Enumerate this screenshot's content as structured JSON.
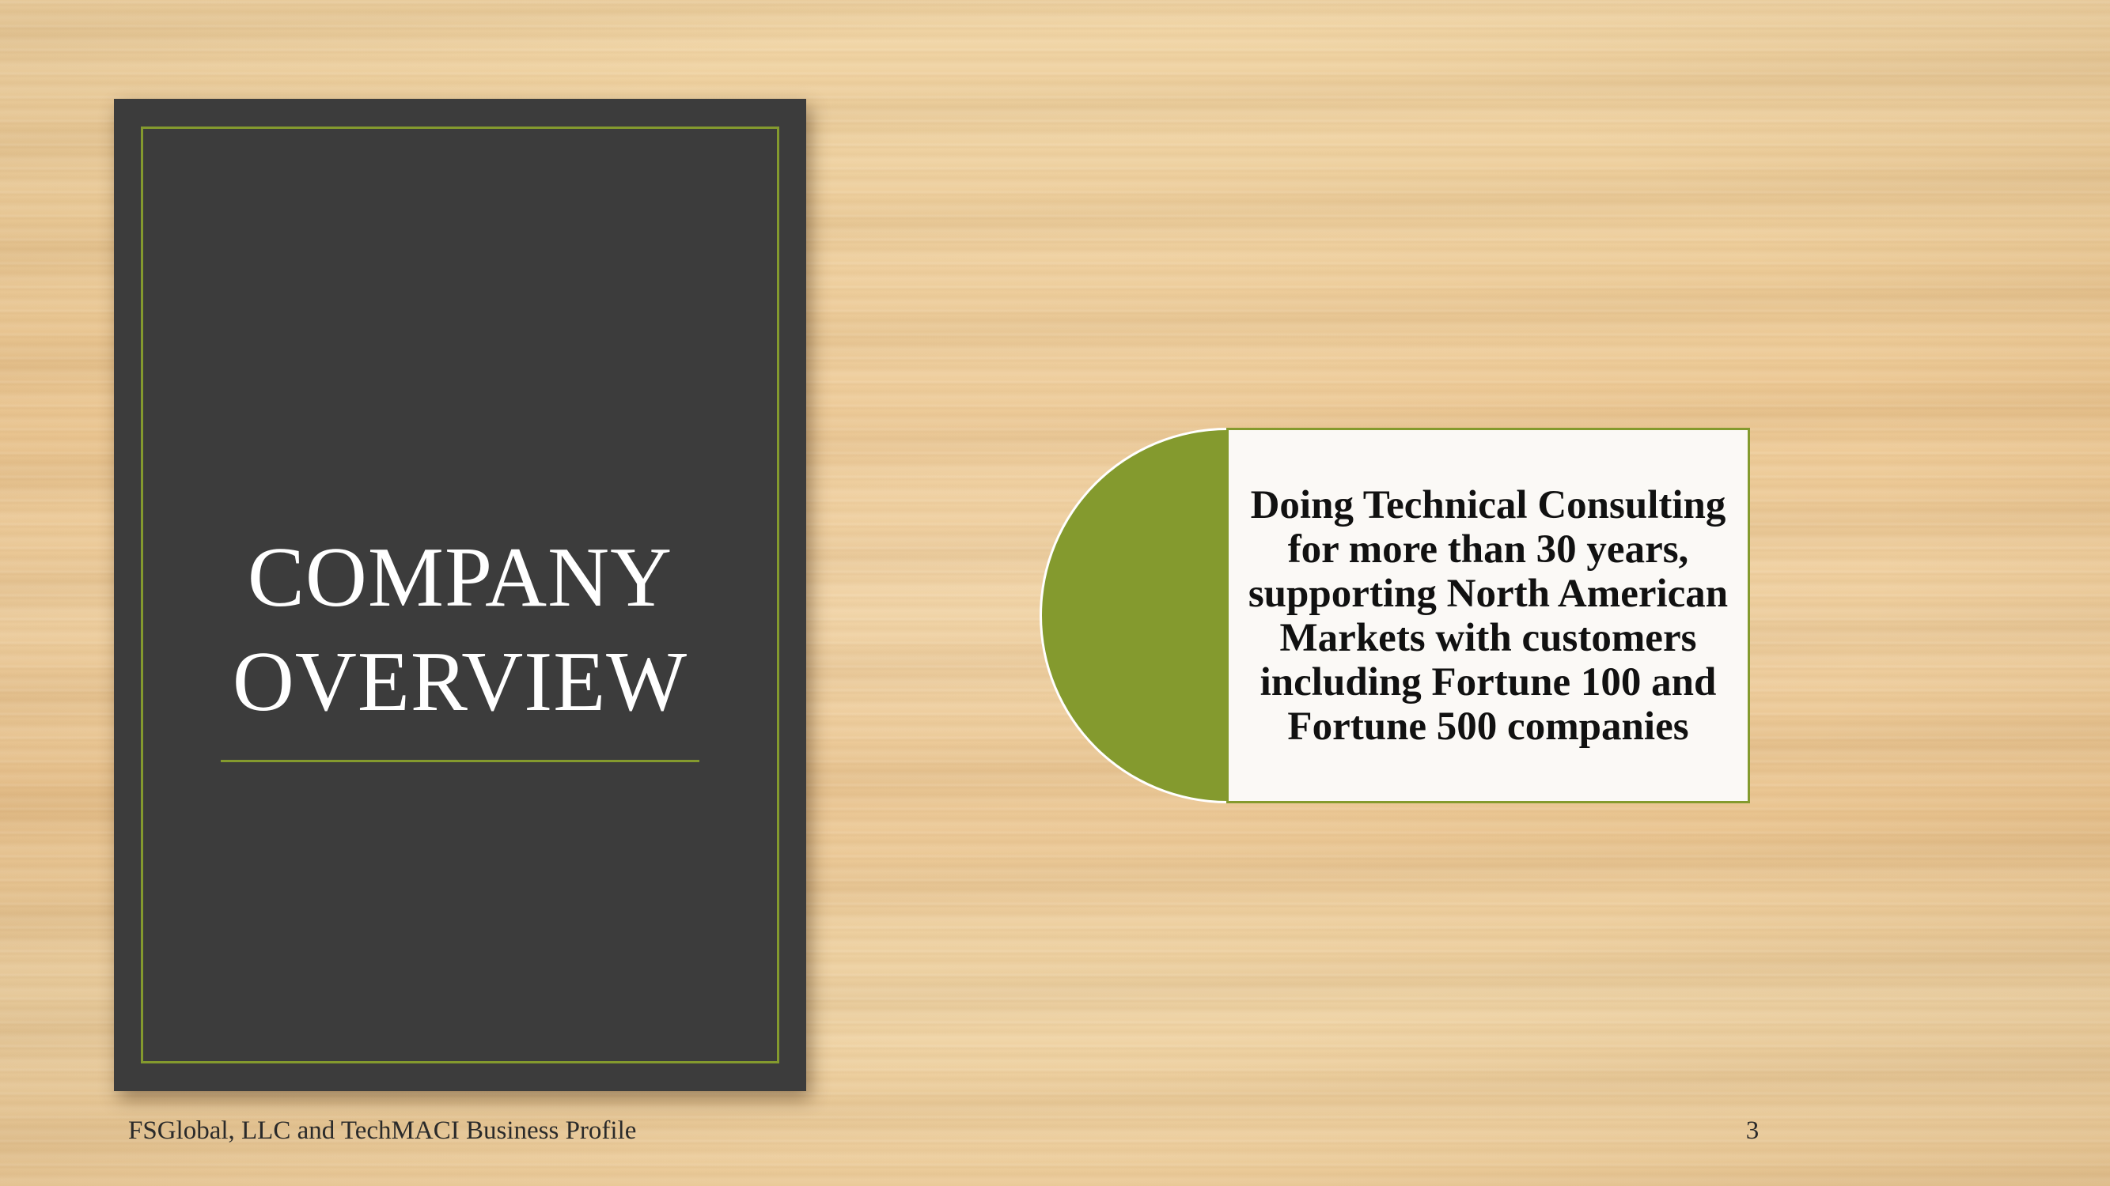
{
  "slide": {
    "title_lines": [
      "COMPANY",
      "OVERVIEW"
    ],
    "callout_text": "Doing Technical Consulting for more than 30 years, supporting North American Markets with customers including Fortune 100 and Fortune 500 companies",
    "footer_text": "FSGlobal, LLC and TechMACI Business Profile",
    "page_number": "3"
  },
  "colors": {
    "accent_green": "#849a2e",
    "panel_dark": "#3c3c3c",
    "background": "#ecc792"
  }
}
